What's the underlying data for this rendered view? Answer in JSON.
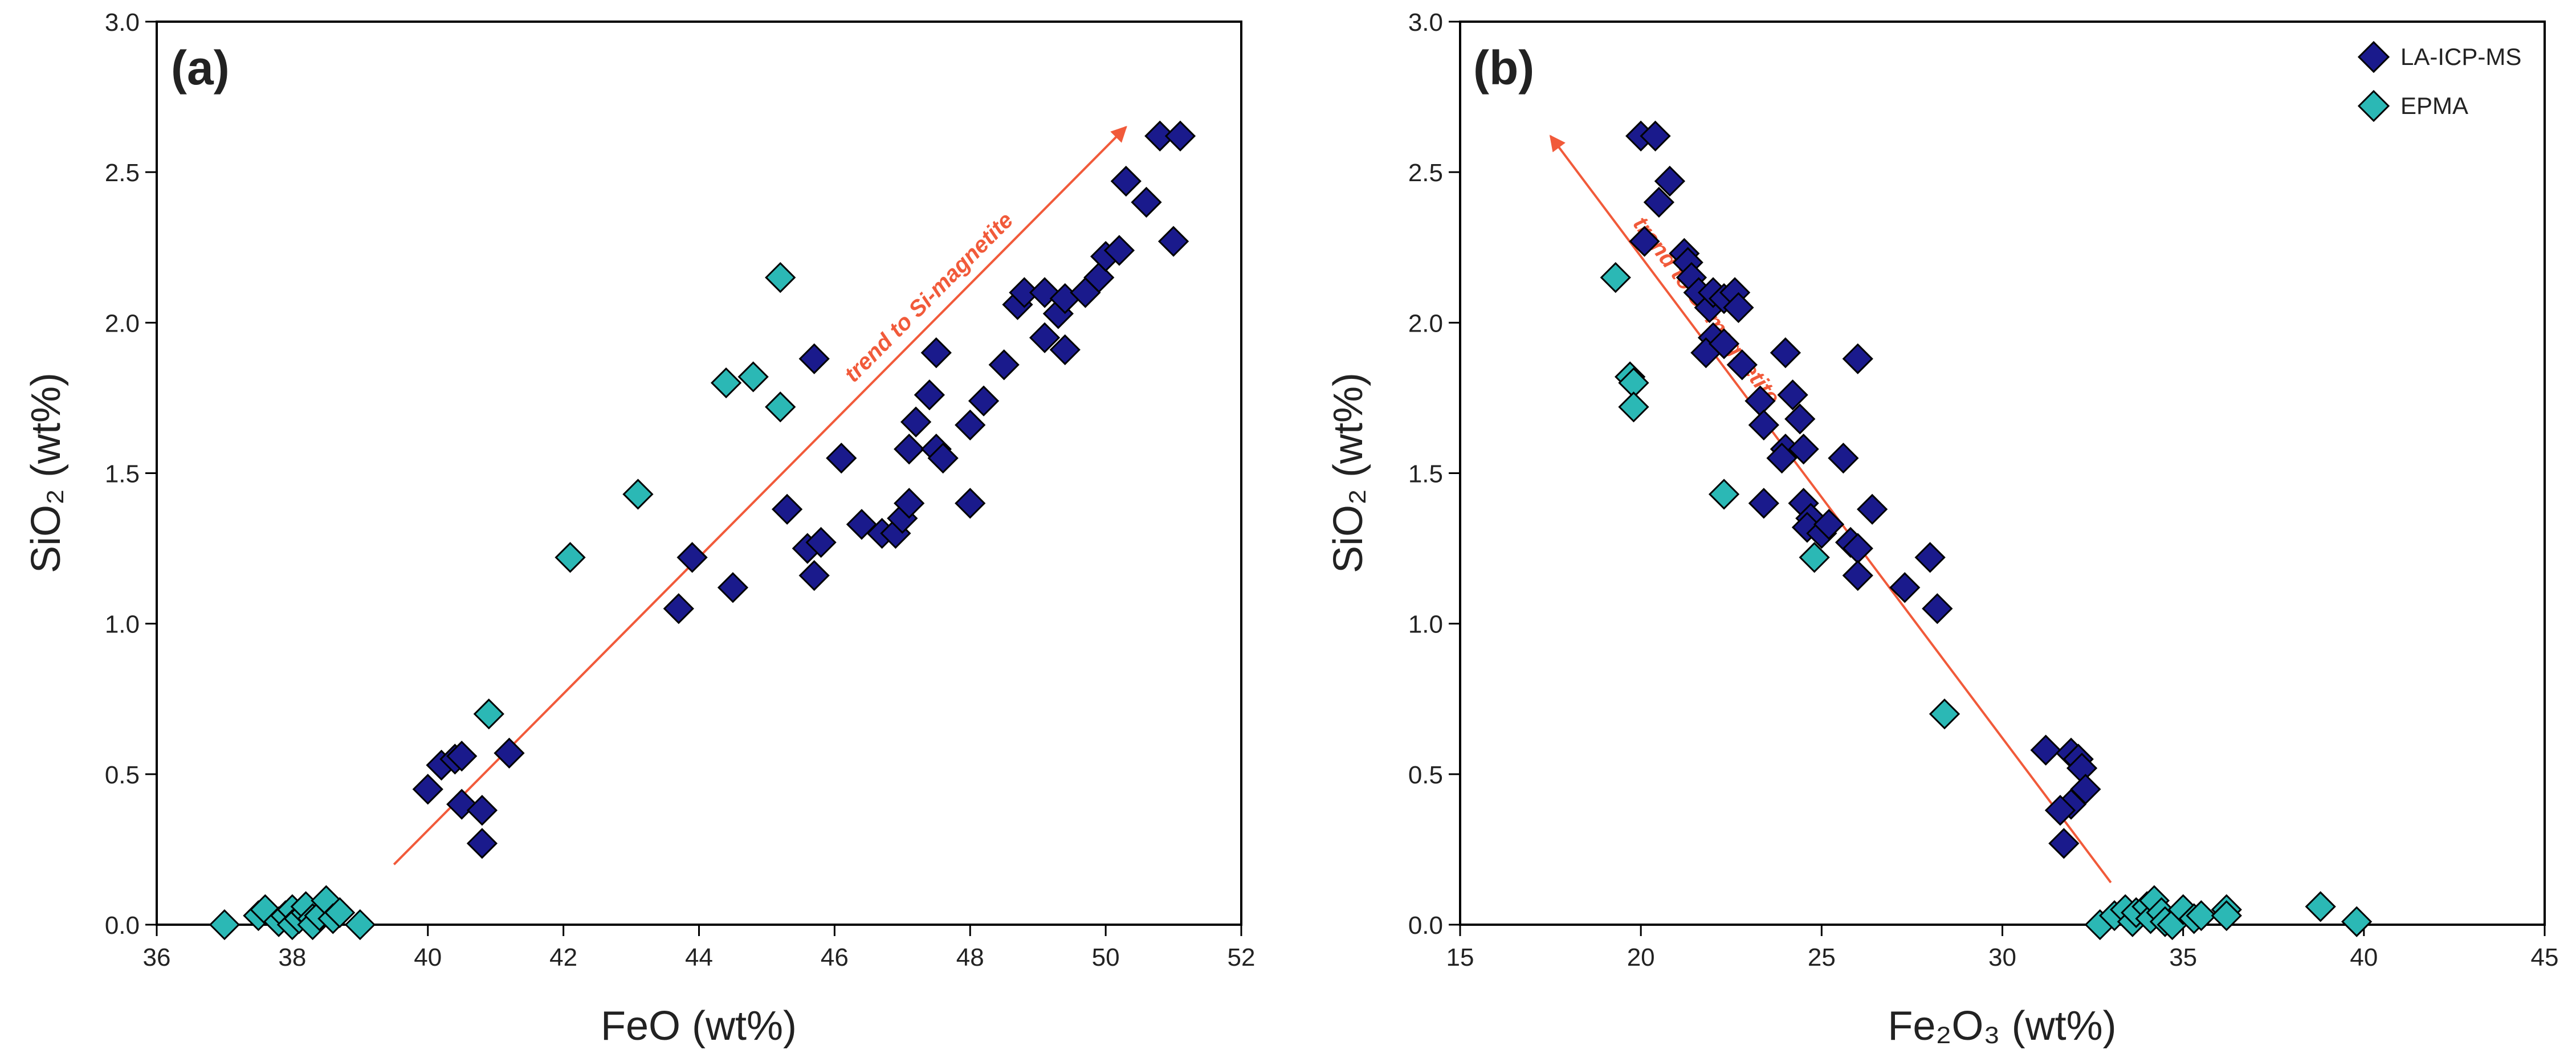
{
  "chart_data": [
    {
      "type": "scatter",
      "panel_label": "(a)",
      "xlabel": "FeO (wt%)",
      "ylabel": "SiO₂ (wt%)",
      "xlim": [
        36,
        52
      ],
      "ylim": [
        0,
        3
      ],
      "xticks": [
        "36",
        "38",
        "40",
        "42",
        "44",
        "46",
        "48",
        "50",
        "52"
      ],
      "yticks": [
        "0.0",
        "0.5",
        "1.0",
        "1.5",
        "2.0",
        "2.5",
        "3.0"
      ],
      "trend": {
        "label": "trend to Si-magnetite",
        "from": [
          39.5,
          0.2
        ],
        "to": [
          50.3,
          2.65
        ],
        "color": "#f15a3a"
      },
      "series": [
        {
          "name": "LA-ICP-MS",
          "color": "#1a1a8c",
          "points": [
            [
              40.0,
              0.45
            ],
            [
              40.2,
              0.53
            ],
            [
              40.4,
              0.55
            ],
            [
              40.5,
              0.56
            ],
            [
              40.5,
              0.4
            ],
            [
              40.8,
              0.38
            ],
            [
              40.8,
              0.27
            ],
            [
              41.2,
              0.57
            ],
            [
              43.7,
              1.05
            ],
            [
              43.9,
              1.22
            ],
            [
              44.5,
              1.12
            ],
            [
              45.3,
              1.38
            ],
            [
              45.6,
              1.25
            ],
            [
              45.7,
              1.16
            ],
            [
              45.8,
              1.27
            ],
            [
              45.7,
              1.88
            ],
            [
              46.1,
              1.55
            ],
            [
              46.4,
              1.33
            ],
            [
              46.7,
              1.3
            ],
            [
              46.9,
              1.3
            ],
            [
              47.0,
              1.35
            ],
            [
              47.1,
              1.4
            ],
            [
              47.1,
              1.58
            ],
            [
              47.2,
              1.67
            ],
            [
              47.4,
              1.76
            ],
            [
              47.5,
              1.58
            ],
            [
              47.5,
              1.9
            ],
            [
              47.6,
              1.55
            ],
            [
              48.0,
              1.4
            ],
            [
              48.0,
              1.66
            ],
            [
              48.2,
              1.74
            ],
            [
              48.5,
              1.86
            ],
            [
              48.7,
              2.06
            ],
            [
              48.8,
              2.1
            ],
            [
              49.1,
              2.1
            ],
            [
              49.1,
              1.95
            ],
            [
              49.3,
              2.03
            ],
            [
              49.4,
              1.91
            ],
            [
              49.4,
              2.08
            ],
            [
              49.7,
              2.1
            ],
            [
              49.9,
              2.15
            ],
            [
              50.0,
              2.22
            ],
            [
              50.2,
              2.24
            ],
            [
              50.3,
              2.47
            ],
            [
              50.6,
              2.4
            ],
            [
              50.8,
              2.62
            ],
            [
              51.0,
              2.27
            ],
            [
              51.1,
              2.62
            ]
          ]
        },
        {
          "name": "EPMA",
          "color": "#2bb8b5",
          "points": [
            [
              37.0,
              0.0
            ],
            [
              37.5,
              0.03
            ],
            [
              37.6,
              0.05
            ],
            [
              37.8,
              0.01
            ],
            [
              37.9,
              0.03
            ],
            [
              38.0,
              0.05
            ],
            [
              38.0,
              0.0
            ],
            [
              38.1,
              0.02
            ],
            [
              38.2,
              0.04
            ],
            [
              38.2,
              0.06
            ],
            [
              38.3,
              0.02
            ],
            [
              38.3,
              0.0
            ],
            [
              38.4,
              0.03
            ],
            [
              38.5,
              0.08
            ],
            [
              38.6,
              0.02
            ],
            [
              38.7,
              0.04
            ],
            [
              39.0,
              0.0
            ],
            [
              40.9,
              0.7
            ],
            [
              42.1,
              1.22
            ],
            [
              43.1,
              1.43
            ],
            [
              44.4,
              1.8
            ],
            [
              44.8,
              1.82
            ],
            [
              45.2,
              1.72
            ],
            [
              45.2,
              2.15
            ]
          ]
        }
      ]
    },
    {
      "type": "scatter",
      "panel_label": "(b)",
      "xlabel": "Fe₂O₃ (wt%)",
      "ylabel": "SiO₂ (wt%)",
      "xlim": [
        15,
        45
      ],
      "ylim": [
        0,
        3
      ],
      "xticks": [
        "15",
        "20",
        "25",
        "30",
        "35",
        "40",
        "45"
      ],
      "yticks": [
        "0.0",
        "0.5",
        "1.0",
        "1.5",
        "2.0",
        "2.5",
        "3.0"
      ],
      "trend": {
        "label": "trend to Si-magnetite",
        "from": [
          33.0,
          0.14
        ],
        "to": [
          17.5,
          2.62
        ],
        "color": "#f15a3a"
      },
      "legend": {
        "position": "top-right"
      },
      "series": [
        {
          "name": "LA-ICP-MS",
          "color": "#1a1a8c",
          "points": [
            [
              20.0,
              2.62
            ],
            [
              20.4,
              2.62
            ],
            [
              20.8,
              2.47
            ],
            [
              20.5,
              2.4
            ],
            [
              20.1,
              2.27
            ],
            [
              21.2,
              2.23
            ],
            [
              21.3,
              2.2
            ],
            [
              21.4,
              2.15
            ],
            [
              21.6,
              2.1
            ],
            [
              21.9,
              2.05
            ],
            [
              22.0,
              2.1
            ],
            [
              22.3,
              2.08
            ],
            [
              22.6,
              2.1
            ],
            [
              22.7,
              2.05
            ],
            [
              22.0,
              1.95
            ],
            [
              21.8,
              1.9
            ],
            [
              22.3,
              1.93
            ],
            [
              22.8,
              1.86
            ],
            [
              24.0,
              1.9
            ],
            [
              26.0,
              1.88
            ],
            [
              23.3,
              1.74
            ],
            [
              24.2,
              1.76
            ],
            [
              23.4,
              1.66
            ],
            [
              24.4,
              1.68
            ],
            [
              24.0,
              1.58
            ],
            [
              23.9,
              1.55
            ],
            [
              24.5,
              1.58
            ],
            [
              25.6,
              1.55
            ],
            [
              23.4,
              1.4
            ],
            [
              24.5,
              1.4
            ],
            [
              24.7,
              1.35
            ],
            [
              24.6,
              1.32
            ],
            [
              25.0,
              1.3
            ],
            [
              25.2,
              1.33
            ],
            [
              26.4,
              1.38
            ],
            [
              25.8,
              1.27
            ],
            [
              26.0,
              1.25
            ],
            [
              26.0,
              1.16
            ],
            [
              27.3,
              1.12
            ],
            [
              28.0,
              1.22
            ],
            [
              28.2,
              1.05
            ],
            [
              31.2,
              0.58
            ],
            [
              31.9,
              0.57
            ],
            [
              32.1,
              0.55
            ],
            [
              32.2,
              0.52
            ],
            [
              32.3,
              0.45
            ],
            [
              31.9,
              0.4
            ],
            [
              31.6,
              0.38
            ],
            [
              31.7,
              0.27
            ]
          ]
        },
        {
          "name": "EPMA",
          "color": "#2bb8b5",
          "points": [
            [
              19.3,
              2.15
            ],
            [
              19.7,
              1.82
            ],
            [
              19.8,
              1.8
            ],
            [
              19.8,
              1.72
            ],
            [
              22.3,
              1.43
            ],
            [
              24.8,
              1.22
            ],
            [
              28.4,
              0.7
            ],
            [
              32.7,
              0.0
            ],
            [
              33.1,
              0.03
            ],
            [
              33.4,
              0.05
            ],
            [
              33.6,
              0.01
            ],
            [
              33.7,
              0.04
            ],
            [
              34.0,
              0.06
            ],
            [
              34.1,
              0.02
            ],
            [
              34.2,
              0.08
            ],
            [
              34.4,
              0.04
            ],
            [
              34.5,
              0.01
            ],
            [
              34.7,
              0.0
            ],
            [
              35.0,
              0.05
            ],
            [
              35.3,
              0.02
            ],
            [
              35.5,
              0.03
            ],
            [
              36.2,
              0.05
            ],
            [
              36.2,
              0.03
            ],
            [
              38.8,
              0.06
            ],
            [
              39.8,
              0.01
            ]
          ]
        }
      ]
    }
  ]
}
